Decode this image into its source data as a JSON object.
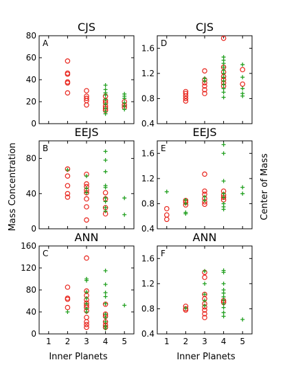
{
  "figure": {
    "ylabel_left": "Mass Concentration",
    "ylabel_right": "Center of Mass",
    "xlabel_bottom": "Inner Planets"
  },
  "legend": {
    "circle_marker_color": "#e8221a",
    "plus_marker_color": "#22a020"
  },
  "chart_data": [
    {
      "type": "scatter",
      "panel": "A",
      "title": "CJS",
      "metric": "Mass Concentration",
      "xlim": [
        0.5,
        5.5
      ],
      "ylim": [
        0,
        80
      ],
      "yticks": [
        0,
        20,
        40,
        60,
        80
      ],
      "xticks": [
        1,
        2,
        3,
        4,
        5
      ],
      "show_xtick_labels": false,
      "series": [
        {
          "marker": "circle",
          "color": "#e8221a",
          "points": [
            [
              2,
              57
            ],
            [
              2,
              46
            ],
            [
              2,
              45
            ],
            [
              2,
              38
            ],
            [
              2,
              37
            ],
            [
              2,
              28
            ],
            [
              3,
              30
            ],
            [
              3,
              25
            ],
            [
              3,
              23
            ],
            [
              3,
              21
            ],
            [
              3,
              17
            ],
            [
              4,
              25
            ],
            [
              4,
              21
            ],
            [
              4,
              19
            ],
            [
              4,
              16
            ],
            [
              4,
              14
            ],
            [
              4,
              12
            ],
            [
              5,
              20
            ],
            [
              5,
              17
            ],
            [
              5,
              15
            ]
          ]
        },
        {
          "marker": "plus",
          "color": "#22a020",
          "points": [
            [
              4,
              35
            ],
            [
              4,
              31
            ],
            [
              4,
              28
            ],
            [
              4,
              26
            ],
            [
              4,
              22
            ],
            [
              4,
              18
            ],
            [
              4,
              14
            ],
            [
              4,
              11
            ],
            [
              4,
              9
            ],
            [
              5,
              27
            ],
            [
              5,
              25
            ],
            [
              5,
              23
            ],
            [
              5,
              19
            ],
            [
              5,
              16
            ],
            [
              5,
              13
            ]
          ]
        }
      ]
    },
    {
      "type": "scatter",
      "panel": "D",
      "title": "CJS",
      "metric": "Center of Mass",
      "xlim": [
        0.5,
        5.5
      ],
      "ylim": [
        0.4,
        1.8
      ],
      "yticks": [
        0.4,
        0.8,
        1.2,
        1.6
      ],
      "xticks": [
        1,
        2,
        3,
        4,
        5
      ],
      "show_xtick_labels": false,
      "series": [
        {
          "marker": "circle",
          "color": "#e8221a",
          "points": [
            [
              2,
              0.91
            ],
            [
              2,
              0.88
            ],
            [
              2,
              0.84
            ],
            [
              2,
              0.8
            ],
            [
              2,
              0.76
            ],
            [
              3,
              1.24
            ],
            [
              3,
              1.1
            ],
            [
              3,
              1.05
            ],
            [
              3,
              1.0
            ],
            [
              3,
              0.94
            ],
            [
              3,
              0.88
            ],
            [
              4,
              1.76
            ],
            [
              4,
              1.3
            ],
            [
              4,
              1.22
            ],
            [
              4,
              1.15
            ],
            [
              4,
              1.1
            ],
            [
              4,
              1.05
            ],
            [
              4,
              1.0
            ],
            [
              5,
              1.26
            ],
            [
              5,
              1.03
            ]
          ]
        },
        {
          "marker": "plus",
          "color": "#22a020",
          "points": [
            [
              3,
              1.08
            ],
            [
              3,
              1.12
            ],
            [
              4,
              1.46
            ],
            [
              4,
              1.41
            ],
            [
              4,
              1.36
            ],
            [
              4,
              1.3
            ],
            [
              4,
              1.25
            ],
            [
              4,
              1.2
            ],
            [
              4,
              1.14
            ],
            [
              4,
              1.08
            ],
            [
              4,
              1.02
            ],
            [
              4,
              0.96
            ],
            [
              4,
              0.9
            ],
            [
              4,
              0.82
            ],
            [
              5,
              1.34
            ],
            [
              5,
              1.14
            ],
            [
              5,
              0.96
            ],
            [
              5,
              0.88
            ],
            [
              5,
              0.84
            ]
          ]
        }
      ]
    },
    {
      "type": "scatter",
      "panel": "B",
      "title": "EEJS",
      "metric": "Mass Concentration",
      "xlim": [
        0.5,
        5.5
      ],
      "ylim": [
        0,
        100
      ],
      "yticks": [
        0,
        40,
        80
      ],
      "xticks": [
        1,
        2,
        3,
        4,
        5
      ],
      "show_xtick_labels": false,
      "series": [
        {
          "marker": "circle",
          "color": "#e8221a",
          "points": [
            [
              2,
              68
            ],
            [
              2,
              60
            ],
            [
              2,
              49
            ],
            [
              2,
              40
            ],
            [
              2,
              36
            ],
            [
              3,
              62
            ],
            [
              3,
              51
            ],
            [
              3,
              48
            ],
            [
              3,
              44
            ],
            [
              3,
              41
            ],
            [
              3,
              34
            ],
            [
              3,
              25
            ],
            [
              3,
              10
            ],
            [
              4,
              41
            ],
            [
              4,
              34
            ],
            [
              4,
              24
            ],
            [
              4,
              17
            ]
          ]
        },
        {
          "marker": "plus",
          "color": "#22a020",
          "points": [
            [
              2,
              67
            ],
            [
              3,
              60
            ],
            [
              3,
              46
            ],
            [
              3,
              41
            ],
            [
              4,
              88
            ],
            [
              4,
              78
            ],
            [
              4,
              65
            ],
            [
              4,
              49
            ],
            [
              4,
              47
            ],
            [
              4,
              35
            ],
            [
              4,
              31
            ],
            [
              4,
              24
            ],
            [
              4,
              20
            ],
            [
              5,
              35
            ],
            [
              5,
              16
            ]
          ]
        }
      ]
    },
    {
      "type": "scatter",
      "panel": "E",
      "title": "EEJS",
      "metric": "Center of Mass",
      "xlim": [
        0.5,
        5.5
      ],
      "ylim": [
        0.4,
        1.8
      ],
      "yticks": [
        0.4,
        0.8,
        1.2,
        1.6
      ],
      "xticks": [
        1,
        2,
        3,
        4,
        5
      ],
      "show_xtick_labels": false,
      "series": [
        {
          "marker": "circle",
          "color": "#e8221a",
          "points": [
            [
              1,
              0.72
            ],
            [
              1,
              0.62
            ],
            [
              1,
              0.55
            ],
            [
              2,
              0.85
            ],
            [
              2,
              0.82
            ],
            [
              2,
              0.78
            ],
            [
              3,
              1.27
            ],
            [
              3,
              1.0
            ],
            [
              3,
              0.95
            ],
            [
              3,
              0.88
            ],
            [
              3,
              0.83
            ],
            [
              3,
              0.79
            ],
            [
              4,
              1.0
            ],
            [
              4,
              0.94
            ],
            [
              4,
              0.9
            ],
            [
              4,
              0.86
            ]
          ]
        },
        {
          "marker": "plus",
          "color": "#22a020",
          "points": [
            [
              1,
              0.99
            ],
            [
              2,
              0.86
            ],
            [
              2,
              0.8
            ],
            [
              2,
              0.66
            ],
            [
              2,
              0.64
            ],
            [
              3,
              0.91
            ],
            [
              3,
              0.85
            ],
            [
              4,
              1.74
            ],
            [
              4,
              1.6
            ],
            [
              4,
              1.16
            ],
            [
              4,
              0.96
            ],
            [
              4,
              0.9
            ],
            [
              4,
              0.8
            ],
            [
              4,
              0.75
            ],
            [
              4,
              0.71
            ],
            [
              5,
              1.06
            ],
            [
              5,
              0.96
            ]
          ]
        }
      ]
    },
    {
      "type": "scatter",
      "panel": "C",
      "title": "ANN",
      "metric": "Mass Concentration",
      "xlim": [
        0.5,
        5.5
      ],
      "ylim": [
        0,
        160
      ],
      "yticks": [
        0,
        40,
        80,
        120,
        160
      ],
      "xticks": [
        1,
        2,
        3,
        4,
        5
      ],
      "show_xtick_labels": true,
      "series": [
        {
          "marker": "circle",
          "color": "#e8221a",
          "points": [
            [
              2,
              85
            ],
            [
              2,
              65
            ],
            [
              2,
              63
            ],
            [
              2,
              48
            ],
            [
              3,
              138
            ],
            [
              3,
              78
            ],
            [
              3,
              70
            ],
            [
              3,
              62
            ],
            [
              3,
              56
            ],
            [
              3,
              52
            ],
            [
              3,
              48
            ],
            [
              3,
              42
            ],
            [
              3,
              30
            ],
            [
              3,
              22
            ],
            [
              3,
              17
            ],
            [
              3,
              12
            ],
            [
              4,
              54
            ],
            [
              4,
              36
            ],
            [
              4,
              32
            ],
            [
              4,
              22
            ],
            [
              4,
              16
            ],
            [
              4,
              12
            ]
          ]
        },
        {
          "marker": "plus",
          "color": "#22a020",
          "points": [
            [
              2,
              40
            ],
            [
              3,
              100
            ],
            [
              3,
              97
            ],
            [
              3,
              76
            ],
            [
              3,
              65
            ],
            [
              3,
              55
            ],
            [
              3,
              46
            ],
            [
              3,
              40
            ],
            [
              4,
              115
            ],
            [
              4,
              90
            ],
            [
              4,
              75
            ],
            [
              4,
              68
            ],
            [
              4,
              55
            ],
            [
              4,
              36
            ],
            [
              4,
              30
            ],
            [
              4,
              22
            ],
            [
              4,
              14
            ],
            [
              4,
              10
            ],
            [
              5,
              52
            ]
          ]
        }
      ]
    },
    {
      "type": "scatter",
      "panel": "F",
      "title": "ANN",
      "metric": "Center of Mass",
      "xlim": [
        0.5,
        5.5
      ],
      "ylim": [
        0.4,
        1.8
      ],
      "yticks": [
        0.4,
        0.8,
        1.2,
        1.6
      ],
      "xticks": [
        1,
        2,
        3,
        4,
        5
      ],
      "show_xtick_labels": true,
      "series": [
        {
          "marker": "circle",
          "color": "#e8221a",
          "points": [
            [
              2,
              0.84
            ],
            [
              2,
              0.8
            ],
            [
              2,
              0.78
            ],
            [
              3,
              1.38
            ],
            [
              3,
              1.3
            ],
            [
              3,
              1.03
            ],
            [
              3,
              0.96
            ],
            [
              3,
              0.88
            ],
            [
              3,
              0.83
            ],
            [
              3,
              0.78
            ],
            [
              3,
              0.72
            ],
            [
              3,
              0.66
            ],
            [
              4,
              0.93
            ],
            [
              4,
              0.9
            ]
          ]
        },
        {
          "marker": "plus",
          "color": "#22a020",
          "points": [
            [
              2,
              0.81
            ],
            [
              3,
              1.4
            ],
            [
              3,
              1.2
            ],
            [
              3,
              1.03
            ],
            [
              3,
              0.93
            ],
            [
              3,
              0.85
            ],
            [
              4,
              1.41
            ],
            [
              4,
              1.38
            ],
            [
              4,
              1.2
            ],
            [
              4,
              1.1
            ],
            [
              4,
              1.05
            ],
            [
              4,
              0.99
            ],
            [
              4,
              0.94
            ],
            [
              4,
              0.88
            ],
            [
              4,
              0.82
            ],
            [
              4,
              0.74
            ],
            [
              4,
              0.68
            ],
            [
              5,
              0.63
            ]
          ]
        }
      ]
    }
  ]
}
